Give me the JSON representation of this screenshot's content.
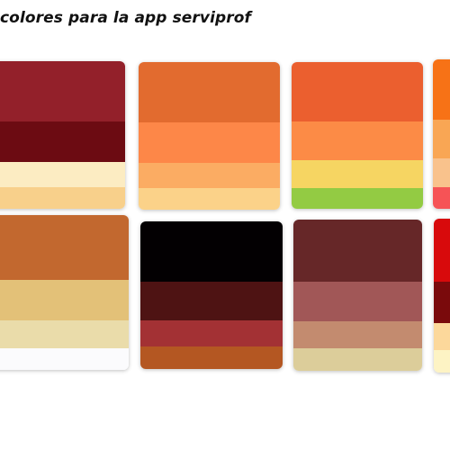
{
  "title": "colores para la app serviprof",
  "palettes": [
    {
      "swatches": [
        {
          "color": "#93202a"
        },
        {
          "color": "#6c0b12"
        },
        {
          "color": "#fcecc2"
        },
        {
          "color": "#f8d08b"
        }
      ]
    },
    {
      "swatches": [
        {
          "color": "#e26b2f"
        },
        {
          "color": "#fd8748"
        },
        {
          "color": "#fbac63"
        },
        {
          "color": "#fbd289"
        }
      ]
    },
    {
      "swatches": [
        {
          "color": "#eb5f2f"
        },
        {
          "color": "#fc8b46"
        },
        {
          "color": "#f6d562"
        },
        {
          "color": "#93cb43"
        }
      ]
    },
    {
      "swatches": [
        {
          "color": "#f77216"
        },
        {
          "color": "#f9a654"
        },
        {
          "color": "#f9c28c"
        },
        {
          "color": "#f65356"
        }
      ]
    },
    {
      "swatches": [
        {
          "color": "#c2682f"
        },
        {
          "color": "#e3c178"
        },
        {
          "color": "#eadcaa"
        },
        {
          "color": "#fbfbfd"
        }
      ]
    },
    {
      "swatches": [
        {
          "color": "#030002"
        },
        {
          "color": "#4e1313"
        },
        {
          "color": "#a33134"
        },
        {
          "color": "#b45722"
        }
      ]
    },
    {
      "swatches": [
        {
          "color": "#662728"
        },
        {
          "color": "#a15757"
        },
        {
          "color": "#c38b6f"
        },
        {
          "color": "#dccd9a"
        }
      ]
    },
    {
      "swatches": [
        {
          "color": "#d80a0c"
        },
        {
          "color": "#7a0a0c"
        },
        {
          "color": "#fcd89b"
        },
        {
          "color": "#fdf3c4"
        }
      ]
    }
  ]
}
